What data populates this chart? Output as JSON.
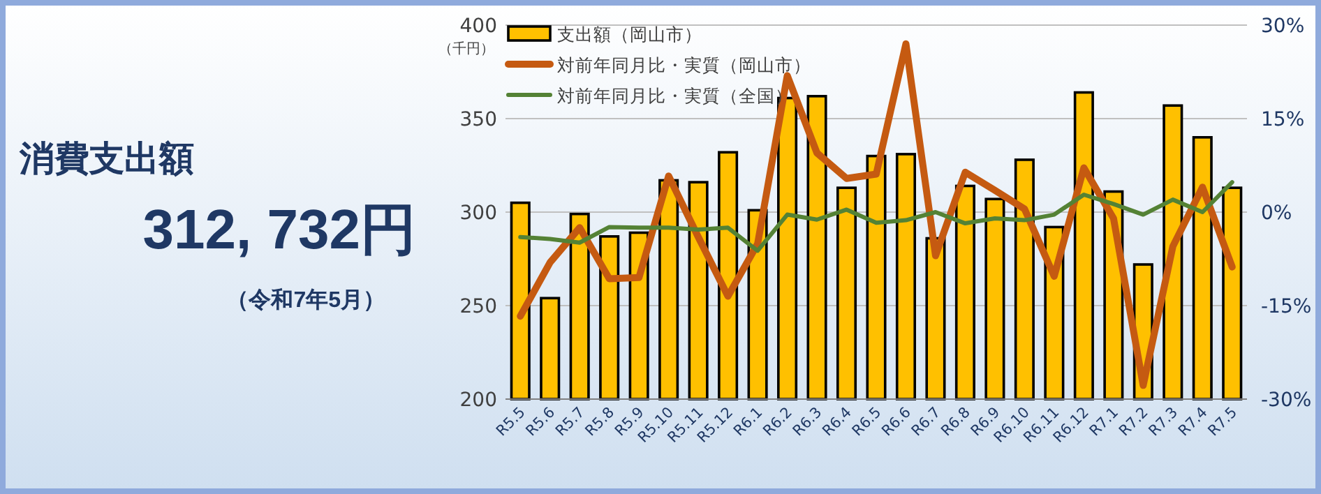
{
  "chart_data": {
    "type": "bar",
    "ylabel": "（千円）",
    "grid": "y",
    "legend": "top left",
    "categories": [
      "R5.5",
      "R5.6",
      "R5.7",
      "R5.8",
      "R5.9",
      "R5.10",
      "R5.11",
      "R5.12",
      "R6.1",
      "R6.2",
      "R6.3",
      "R6.4",
      "R6.5",
      "R6.6",
      "R6.7",
      "R6.8",
      "R6.9",
      "R6.10",
      "R6.11",
      "R6.12",
      "R7.1",
      "R7.2",
      "R7.3",
      "R7.4",
      "R7.5"
    ],
    "series": [
      {
        "name": "支出額（岡山市）",
        "color": "#ffc000",
        "values": [
          305,
          254,
          299,
          287,
          289,
          317,
          316,
          332,
          301,
          361,
          362,
          313,
          330,
          331,
          286,
          314,
          307,
          328,
          292,
          364,
          311,
          272,
          357,
          340,
          313
        ]
      },
      {
        "name": "対前年同月比・実質（岡山市）",
        "type": "line",
        "axis": "y2",
        "color": "#c55a11",
        "values": [
          -16.7,
          -8.1,
          -2.5,
          -10.7,
          -10.5,
          5.8,
          -4.0,
          -13.5,
          -5.1,
          21.9,
          9.5,
          5.4,
          6.1,
          27.0,
          -7.0,
          6.4,
          3.5,
          0.5,
          -10.3,
          7.1,
          -1.0,
          -27.8,
          -5.5,
          4.0,
          -8.8
        ]
      },
      {
        "name": "対前年同月比・実質（全国）",
        "type": "line",
        "axis": "y2",
        "color": "#548235",
        "values": [
          -4.0,
          -4.3,
          -4.9,
          -2.4,
          -2.5,
          -2.5,
          -2.8,
          -2.5,
          -6.2,
          -0.4,
          -1.2,
          0.4,
          -1.7,
          -1.3,
          0.0,
          -1.8,
          -1.0,
          -1.3,
          -0.4,
          2.8,
          1.3,
          -0.4,
          2.0,
          0.0,
          4.8
        ]
      }
    ],
    "ylim": [
      200,
      400
    ],
    "yticks": [
      200,
      250,
      300,
      350,
      400
    ],
    "y2lim": [
      -30,
      30
    ],
    "y2ticks": [
      {
        "value": -30,
        "label": "-30%"
      },
      {
        "value": -15,
        "label": "-15%"
      },
      {
        "value": 0,
        "label": "0%"
      },
      {
        "value": 15,
        "label": "15%"
      },
      {
        "value": 30,
        "label": "30%"
      }
    ],
    "annotations": [
      "消費支出額",
      "312, 732円",
      "（令和7年5月）"
    ]
  }
}
